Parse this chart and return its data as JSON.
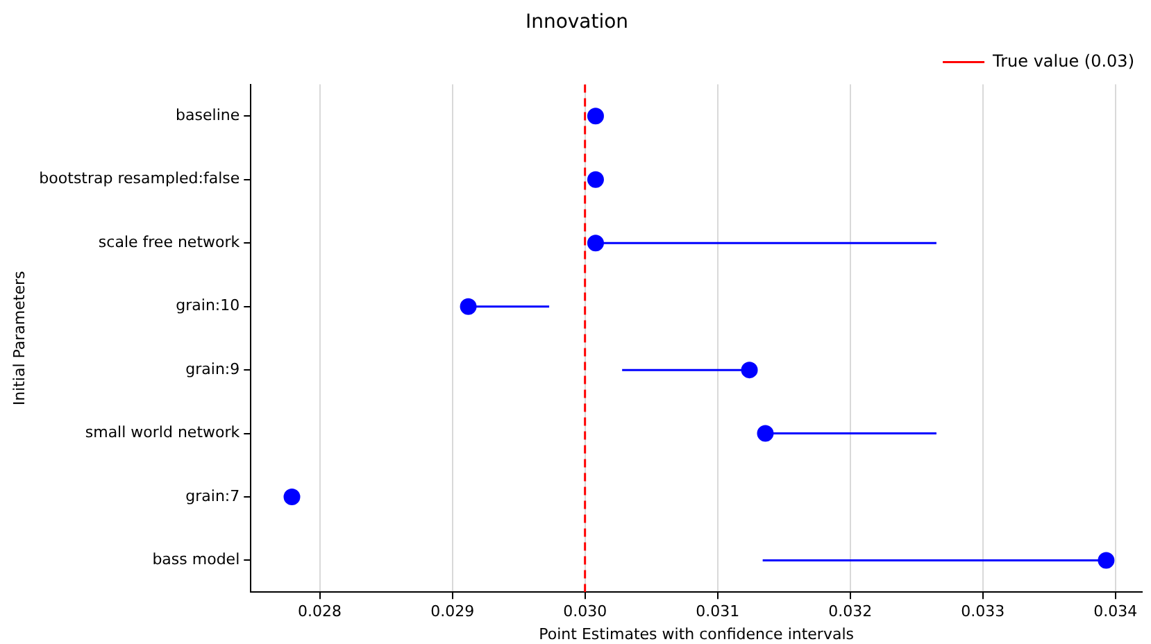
{
  "chart_data": {
    "type": "scatter",
    "title": "Innovation",
    "xlabel": "Point Estimates with confidence intervals",
    "ylabel": "Initial Parameters",
    "orientation": "horizontal",
    "categories": [
      "baseline",
      "bootstrap resampled:false",
      "scale free network",
      "grain:10",
      "grain:9",
      "small world network",
      "grain:7",
      "bass model"
    ],
    "series": [
      {
        "color": "#0000ff",
        "values": [
          0.03008,
          0.03008,
          0.03008,
          0.02912,
          0.03124,
          0.03136,
          0.02779,
          0.03393
        ],
        "errors": [
          null,
          null,
          [
            0.03008,
            0.03265
          ],
          [
            0.02912,
            0.02973
          ],
          [
            0.03028,
            0.03124
          ],
          [
            0.03136,
            0.03265
          ],
          null,
          [
            0.03134,
            0.03393
          ]
        ]
      }
    ],
    "xlim": [
      0.02748,
      0.0342
    ],
    "xticks": [
      0.028,
      0.029,
      {
        "value": 0.03,
        "label": "0.030"
      },
      0.031,
      0.032,
      0.033,
      0.034
    ],
    "ref_lines": [
      {
        "axis": "x",
        "value": 0.03,
        "label": "True value (0.03)",
        "color": "#ff0000",
        "line_style": "dashed"
      }
    ],
    "grid": "x",
    "legend": "top right",
    "marker": "circle"
  }
}
